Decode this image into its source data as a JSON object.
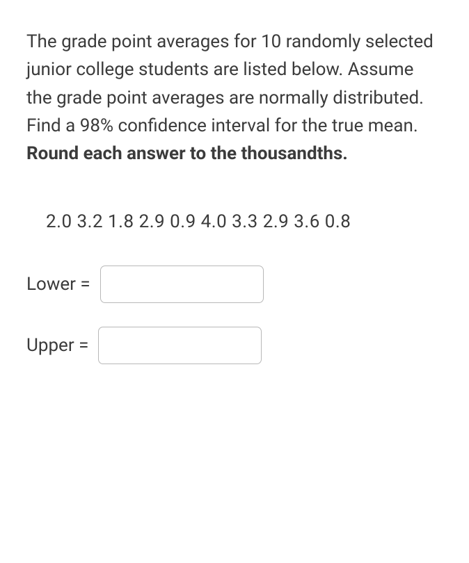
{
  "question": {
    "text_part1": "The grade point averages for 10 randomly selected junior college students are listed below. Assume the grade point averages are normally distributed. Find a 98% confidence interval for the true mean. ",
    "text_bold": "Round each answer to the thousandths.",
    "text_fontsize": 26,
    "text_color": "#3b3b3b",
    "background_color": "#ffffff"
  },
  "data": {
    "values": [
      2.0,
      3.2,
      1.8,
      2.9,
      0.9,
      4.0,
      3.3,
      2.9,
      3.6,
      0.8
    ],
    "display": "2.0   3.2   1.8   2.9   0.9   4.0   3.3   2.9   3.6   0.8",
    "fontsize": 26
  },
  "answers": {
    "lower": {
      "label": "Lower =",
      "value": ""
    },
    "upper": {
      "label": "Upper =",
      "value": ""
    },
    "input_border_color": "#b8b8b8",
    "input_border_radius": 7
  }
}
